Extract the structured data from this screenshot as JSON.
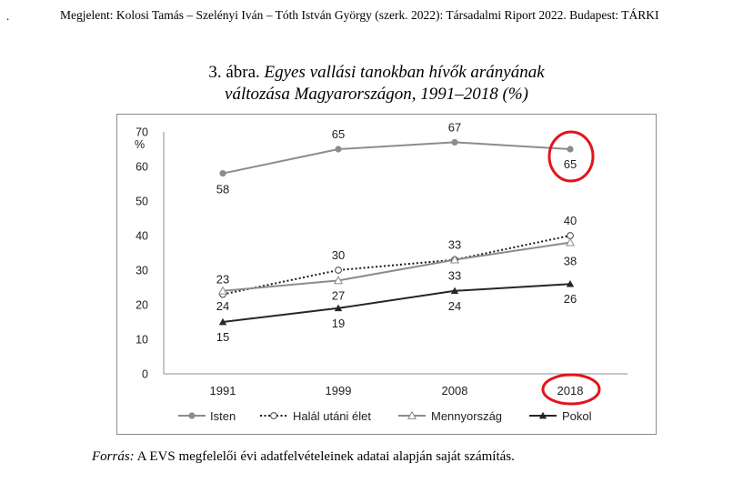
{
  "header": {
    "dot": ".",
    "citation": "Megjelent: Kolosi Tamás – Szelényi Iván – Tóth István György (szerk. 2022): Társadalmi Riport 2022. Budapest: TÁRKI"
  },
  "figure": {
    "title_prefix": "3. ábra.",
    "title_italic_line1": "Egyes vallási tanokban hívők arányának",
    "title_italic_line2": "változása Magyarországon, 1991–2018 (%)"
  },
  "source": {
    "label": "Forrás:",
    "text": "A EVS megfelelői évi adatfelvételeinek adatai alapján saját számítás."
  },
  "chart_data": {
    "type": "line",
    "title": "Egyes vallási tanokban hívők arányának változása Magyarországon, 1991–2018 (%)",
    "ylabel": "%",
    "ylim": [
      0,
      70
    ],
    "yticks": [
      0,
      10,
      20,
      30,
      40,
      50,
      60,
      70
    ],
    "categories": [
      "1991",
      "1999",
      "2008",
      "2018"
    ],
    "legend_position": "bottom",
    "grid": false,
    "highlighted": [
      "value 65 for Isten in 2018",
      "category 2018"
    ],
    "highlight_color": "#e3141b",
    "series": [
      {
        "name": "Isten",
        "values": [
          58,
          65,
          67,
          65
        ],
        "marker": "filled-circle",
        "dash": "solid",
        "color": "#8c8c8c"
      },
      {
        "name": "Halál utáni élet",
        "values": [
          23,
          30,
          33,
          40
        ],
        "marker": "open-circle",
        "dash": "dotted",
        "color": "#1a1a1a"
      },
      {
        "name": "Mennyország",
        "values": [
          24,
          27,
          33,
          38
        ],
        "marker": "open-triangle",
        "dash": "solid",
        "color": "#8c8c8c"
      },
      {
        "name": "Pokol",
        "values": [
          15,
          19,
          24,
          26
        ],
        "marker": "filled-triangle",
        "dash": "solid",
        "color": "#262626"
      }
    ]
  }
}
